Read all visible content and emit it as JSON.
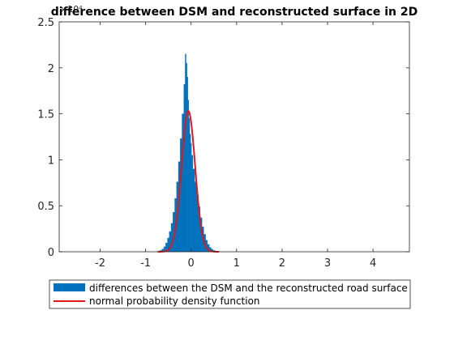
{
  "chart_data": {
    "type": "bar",
    "title": "difference between DSM and reconstructed surface in 2D",
    "xlabel": "",
    "ylabel": "",
    "xlim": [
      -2.9,
      4.8
    ],
    "ylim": [
      0,
      25000
    ],
    "y_tick_scale_label": "×10⁴",
    "x_ticks": [
      -2,
      -1,
      0,
      1,
      2,
      3,
      4
    ],
    "x_tick_labels": [
      "-2",
      "-1",
      "0",
      "1",
      "2",
      "3",
      "4"
    ],
    "y_ticks": [
      0,
      5000,
      10000,
      15000,
      20000,
      25000
    ],
    "y_tick_labels": [
      "0",
      "0.5",
      "1",
      "1.5",
      "2",
      "2.5"
    ],
    "grid": false,
    "legend_position": "below",
    "series": [
      {
        "name": "differences between the DSM and the reconstructed road surface",
        "type": "histogram",
        "color": "#0072BD",
        "bin_centers": [
          -0.7,
          -0.66,
          -0.62,
          -0.58,
          -0.54,
          -0.5,
          -0.46,
          -0.42,
          -0.38,
          -0.34,
          -0.3,
          -0.26,
          -0.22,
          -0.18,
          -0.14,
          -0.12,
          -0.1,
          -0.08,
          -0.06,
          -0.04,
          -0.02,
          0.0,
          0.02,
          0.06,
          0.1,
          0.14,
          0.18,
          0.22,
          0.26,
          0.3,
          0.34,
          0.38,
          0.42,
          0.46,
          0.5,
          0.54,
          0.58
        ],
        "values": [
          50,
          150,
          300,
          550,
          950,
          1500,
          2200,
          3100,
          4300,
          5800,
          7600,
          9800,
          12300,
          15000,
          18200,
          21500,
          20500,
          19000,
          16500,
          14500,
          12800,
          11800,
          10500,
          9000,
          7600,
          6200,
          4900,
          3700,
          2700,
          1900,
          1250,
          800,
          480,
          280,
          150,
          80,
          30
        ]
      },
      {
        "name": "normal probability density function",
        "type": "line",
        "color": "#E0171B",
        "mean": -0.06,
        "sigma": 0.15,
        "peak": 15300
      }
    ]
  }
}
